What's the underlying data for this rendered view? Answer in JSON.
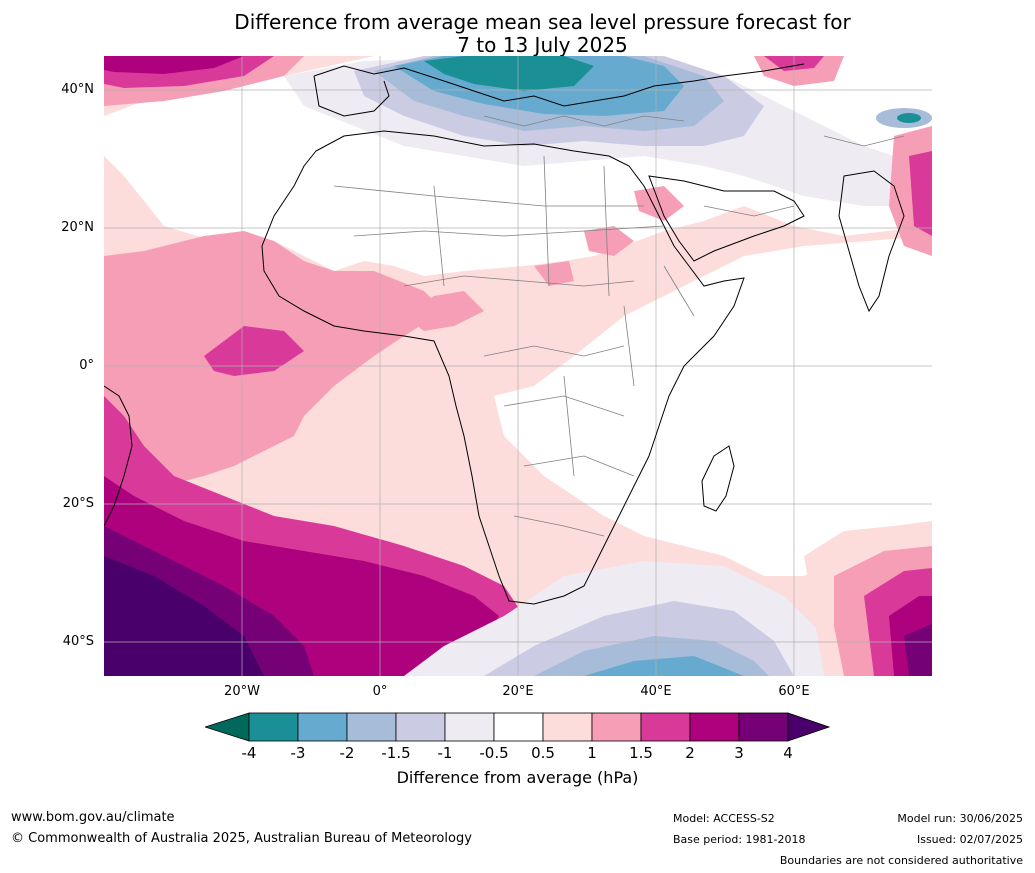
{
  "title": {
    "line1": "Difference from average mean sea level pressure forecast for",
    "line2": "7 to 13 July 2025"
  },
  "axes": {
    "lat_labels": [
      "40°N",
      "20°N",
      "0°",
      "20°S",
      "40°S"
    ],
    "lon_labels": [
      "20°W",
      "0°",
      "20°E",
      "40°E",
      "60°E"
    ]
  },
  "colorbar": {
    "label": "Difference from average (hPa)",
    "ticks": [
      "-4",
      "-3",
      "-2",
      "-1.5",
      "-1",
      "-0.5",
      "0.5",
      "1",
      "1.5",
      "2",
      "3",
      "4"
    ],
    "colors": [
      "#00695c",
      "#1a8f95",
      "#66abcf",
      "#a6bcd9",
      "#cbcbe3",
      "#eeebf3",
      "#ffffff",
      "#fddcdc",
      "#f79eb7",
      "#d93a9a",
      "#ad017e",
      "#760076",
      "#49006a"
    ]
  },
  "footer": {
    "website": "www.bom.gov.au/climate",
    "copyright": "© Commonwealth of Australia 2025, Australian Bureau of Meteorology",
    "model": "Model: ACCESS-S2",
    "base_period": "Base period: 1981-2018",
    "model_run": "Model run: 30/06/2025",
    "issued": "Issued: 02/07/2025",
    "boundaries_note": "Boundaries are not considered authoritative"
  },
  "map_features": [
    "Africa",
    "Europe",
    "Arabian Peninsula",
    "India",
    "Madagascar",
    "Atlantic Ocean",
    "Indian Ocean"
  ]
}
